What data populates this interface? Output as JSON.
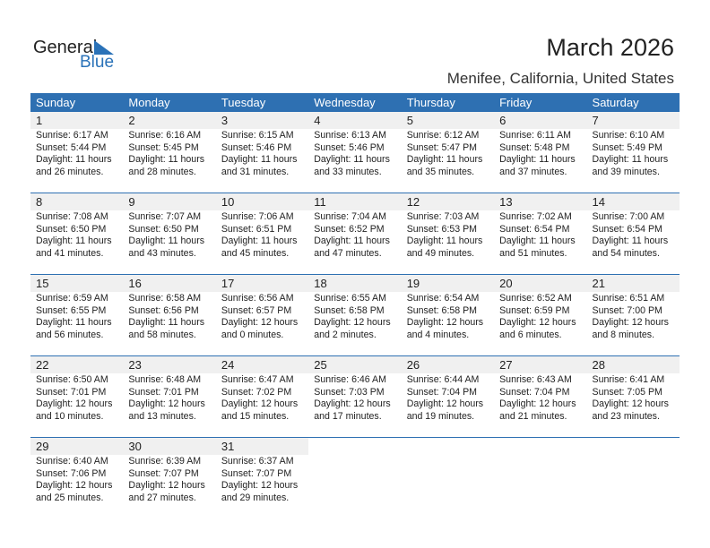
{
  "logo": {
    "line1": "General",
    "line2": "Blue"
  },
  "title": "March 2026",
  "location": "Menifee, California, United States",
  "colors": {
    "header": "#2e70b2",
    "day_band": "#f0f0f0"
  },
  "weekdays": [
    "Sunday",
    "Monday",
    "Tuesday",
    "Wednesday",
    "Thursday",
    "Friday",
    "Saturday"
  ],
  "days": [
    {
      "day": "1",
      "sunrise": "Sunrise: 6:17 AM",
      "sunset": "Sunset: 5:44 PM",
      "daylight": "Daylight: 11 hours",
      "minutes": "and 26 minutes."
    },
    {
      "day": "2",
      "sunrise": "Sunrise: 6:16 AM",
      "sunset": "Sunset: 5:45 PM",
      "daylight": "Daylight: 11 hours",
      "minutes": "and 28 minutes."
    },
    {
      "day": "3",
      "sunrise": "Sunrise: 6:15 AM",
      "sunset": "Sunset: 5:46 PM",
      "daylight": "Daylight: 11 hours",
      "minutes": "and 31 minutes."
    },
    {
      "day": "4",
      "sunrise": "Sunrise: 6:13 AM",
      "sunset": "Sunset: 5:46 PM",
      "daylight": "Daylight: 11 hours",
      "minutes": "and 33 minutes."
    },
    {
      "day": "5",
      "sunrise": "Sunrise: 6:12 AM",
      "sunset": "Sunset: 5:47 PM",
      "daylight": "Daylight: 11 hours",
      "minutes": "and 35 minutes."
    },
    {
      "day": "6",
      "sunrise": "Sunrise: 6:11 AM",
      "sunset": "Sunset: 5:48 PM",
      "daylight": "Daylight: 11 hours",
      "minutes": "and 37 minutes."
    },
    {
      "day": "7",
      "sunrise": "Sunrise: 6:10 AM",
      "sunset": "Sunset: 5:49 PM",
      "daylight": "Daylight: 11 hours",
      "minutes": "and 39 minutes."
    },
    {
      "day": "8",
      "sunrise": "Sunrise: 7:08 AM",
      "sunset": "Sunset: 6:50 PM",
      "daylight": "Daylight: 11 hours",
      "minutes": "and 41 minutes."
    },
    {
      "day": "9",
      "sunrise": "Sunrise: 7:07 AM",
      "sunset": "Sunset: 6:50 PM",
      "daylight": "Daylight: 11 hours",
      "minutes": "and 43 minutes."
    },
    {
      "day": "10",
      "sunrise": "Sunrise: 7:06 AM",
      "sunset": "Sunset: 6:51 PM",
      "daylight": "Daylight: 11 hours",
      "minutes": "and 45 minutes."
    },
    {
      "day": "11",
      "sunrise": "Sunrise: 7:04 AM",
      "sunset": "Sunset: 6:52 PM",
      "daylight": "Daylight: 11 hours",
      "minutes": "and 47 minutes."
    },
    {
      "day": "12",
      "sunrise": "Sunrise: 7:03 AM",
      "sunset": "Sunset: 6:53 PM",
      "daylight": "Daylight: 11 hours",
      "minutes": "and 49 minutes."
    },
    {
      "day": "13",
      "sunrise": "Sunrise: 7:02 AM",
      "sunset": "Sunset: 6:54 PM",
      "daylight": "Daylight: 11 hours",
      "minutes": "and 51 minutes."
    },
    {
      "day": "14",
      "sunrise": "Sunrise: 7:00 AM",
      "sunset": "Sunset: 6:54 PM",
      "daylight": "Daylight: 11 hours",
      "minutes": "and 54 minutes."
    },
    {
      "day": "15",
      "sunrise": "Sunrise: 6:59 AM",
      "sunset": "Sunset: 6:55 PM",
      "daylight": "Daylight: 11 hours",
      "minutes": "and 56 minutes."
    },
    {
      "day": "16",
      "sunrise": "Sunrise: 6:58 AM",
      "sunset": "Sunset: 6:56 PM",
      "daylight": "Daylight: 11 hours",
      "minutes": "and 58 minutes."
    },
    {
      "day": "17",
      "sunrise": "Sunrise: 6:56 AM",
      "sunset": "Sunset: 6:57 PM",
      "daylight": "Daylight: 12 hours",
      "minutes": "and 0 minutes."
    },
    {
      "day": "18",
      "sunrise": "Sunrise: 6:55 AM",
      "sunset": "Sunset: 6:58 PM",
      "daylight": "Daylight: 12 hours",
      "minutes": "and 2 minutes."
    },
    {
      "day": "19",
      "sunrise": "Sunrise: 6:54 AM",
      "sunset": "Sunset: 6:58 PM",
      "daylight": "Daylight: 12 hours",
      "minutes": "and 4 minutes."
    },
    {
      "day": "20",
      "sunrise": "Sunrise: 6:52 AM",
      "sunset": "Sunset: 6:59 PM",
      "daylight": "Daylight: 12 hours",
      "minutes": "and 6 minutes."
    },
    {
      "day": "21",
      "sunrise": "Sunrise: 6:51 AM",
      "sunset": "Sunset: 7:00 PM",
      "daylight": "Daylight: 12 hours",
      "minutes": "and 8 minutes."
    },
    {
      "day": "22",
      "sunrise": "Sunrise: 6:50 AM",
      "sunset": "Sunset: 7:01 PM",
      "daylight": "Daylight: 12 hours",
      "minutes": "and 10 minutes."
    },
    {
      "day": "23",
      "sunrise": "Sunrise: 6:48 AM",
      "sunset": "Sunset: 7:01 PM",
      "daylight": "Daylight: 12 hours",
      "minutes": "and 13 minutes."
    },
    {
      "day": "24",
      "sunrise": "Sunrise: 6:47 AM",
      "sunset": "Sunset: 7:02 PM",
      "daylight": "Daylight: 12 hours",
      "minutes": "and 15 minutes."
    },
    {
      "day": "25",
      "sunrise": "Sunrise: 6:46 AM",
      "sunset": "Sunset: 7:03 PM",
      "daylight": "Daylight: 12 hours",
      "minutes": "and 17 minutes."
    },
    {
      "day": "26",
      "sunrise": "Sunrise: 6:44 AM",
      "sunset": "Sunset: 7:04 PM",
      "daylight": "Daylight: 12 hours",
      "minutes": "and 19 minutes."
    },
    {
      "day": "27",
      "sunrise": "Sunrise: 6:43 AM",
      "sunset": "Sunset: 7:04 PM",
      "daylight": "Daylight: 12 hours",
      "minutes": "and 21 minutes."
    },
    {
      "day": "28",
      "sunrise": "Sunrise: 6:41 AM",
      "sunset": "Sunset: 7:05 PM",
      "daylight": "Daylight: 12 hours",
      "minutes": "and 23 minutes."
    },
    {
      "day": "29",
      "sunrise": "Sunrise: 6:40 AM",
      "sunset": "Sunset: 7:06 PM",
      "daylight": "Daylight: 12 hours",
      "minutes": "and 25 minutes."
    },
    {
      "day": "30",
      "sunrise": "Sunrise: 6:39 AM",
      "sunset": "Sunset: 7:07 PM",
      "daylight": "Daylight: 12 hours",
      "minutes": "and 27 minutes."
    },
    {
      "day": "31",
      "sunrise": "Sunrise: 6:37 AM",
      "sunset": "Sunset: 7:07 PM",
      "daylight": "Daylight: 12 hours",
      "minutes": "and 29 minutes."
    }
  ]
}
